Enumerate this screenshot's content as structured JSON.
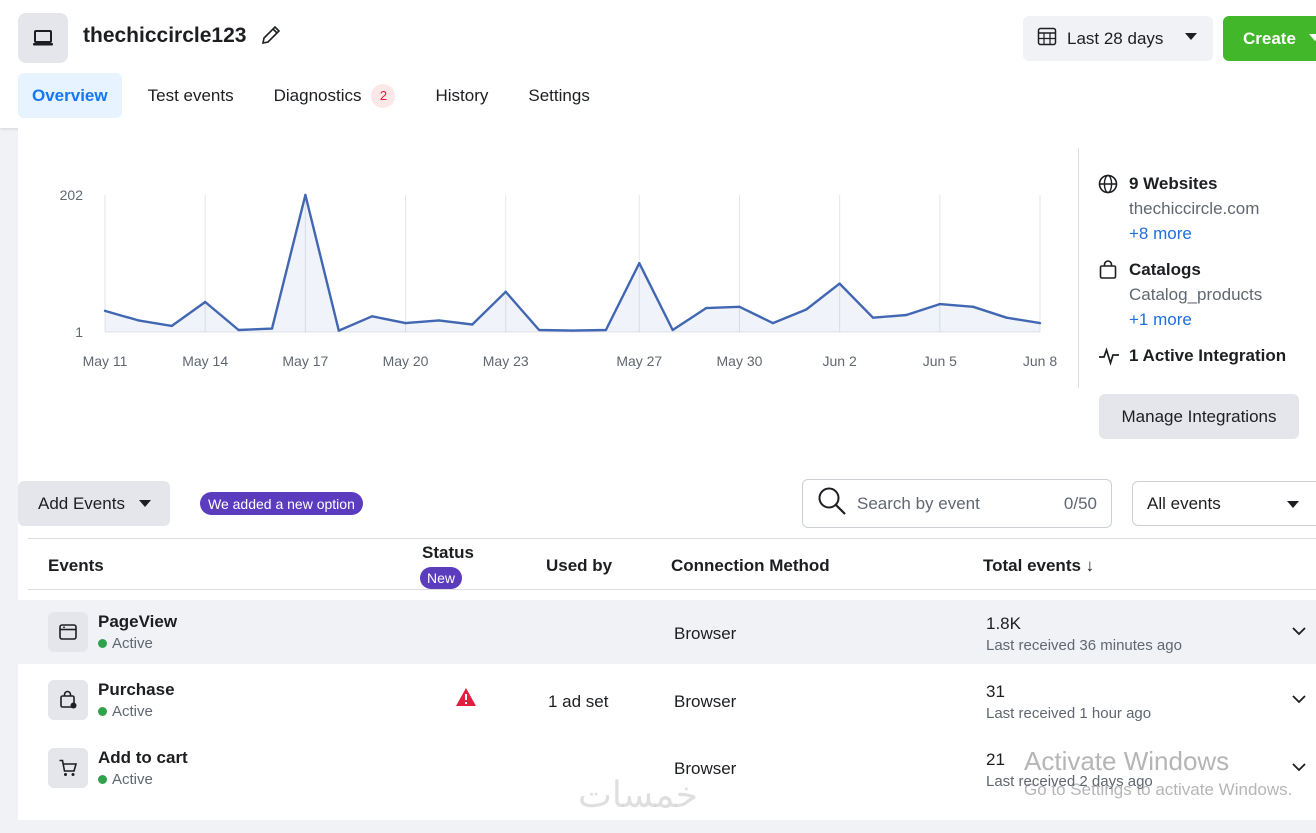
{
  "header": {
    "pixel_name": "thechiccircle123",
    "date_range": "Last 28 days",
    "create_label": "Create"
  },
  "tabs": [
    {
      "label": "Overview",
      "active": true
    },
    {
      "label": "Test events"
    },
    {
      "label": "Diagnostics",
      "badge": "2"
    },
    {
      "label": "History"
    },
    {
      "label": "Settings"
    }
  ],
  "chart_data": {
    "type": "line",
    "title": "",
    "xlabel": "",
    "ylabel": "",
    "y_ticks": [
      "202",
      "1"
    ],
    "ylim": [
      1,
      202
    ],
    "x_ticks": [
      "May 11",
      "May 14",
      "May 17",
      "May 20",
      "May 23",
      "May 27",
      "May 30",
      "Jun 2",
      "Jun 5",
      "Jun 8"
    ],
    "grid": "vertical",
    "color": "#4267b2",
    "series": [
      {
        "x": [
          "May 11",
          "May 12",
          "May 13",
          "May 14",
          "May 15",
          "May 16",
          "May 17",
          "May 18",
          "May 19",
          "May 20",
          "May 21",
          "May 22",
          "May 23",
          "May 24",
          "May 25",
          "May 26",
          "May 27",
          "May 28",
          "May 29",
          "May 30",
          "May 31",
          "Jun 1",
          "Jun 2",
          "Jun 3",
          "Jun 4",
          "Jun 5",
          "Jun 6",
          "Jun 7",
          "Jun 8"
        ],
        "values": [
          32,
          18,
          10,
          45,
          4,
          6,
          202,
          3,
          24,
          14,
          18,
          12,
          60,
          4,
          3,
          4,
          102,
          4,
          36,
          38,
          14,
          34,
          72,
          22,
          26,
          42,
          38,
          22,
          14
        ]
      }
    ]
  },
  "side": {
    "websites_title": "9 Websites",
    "website": "thechiccircle.com",
    "websites_more": "+8 more",
    "catalogs_title": "Catalogs",
    "catalog": "Catalog_products",
    "catalogs_more": "+1 more",
    "integration": "1 Active Integration",
    "manage_label": "Manage Integrations"
  },
  "toolbar": {
    "add_events": "Add Events",
    "new_option": "We added a new option",
    "search_placeholder": "Search by event",
    "search_count": "0/50",
    "filter": "All events"
  },
  "table": {
    "headers": {
      "events": "Events",
      "status": "Status",
      "status_badge": "New",
      "used_by": "Used by",
      "connection": "Connection Method",
      "total": "Total events ↓"
    },
    "rows": [
      {
        "name": "PageView",
        "status": "Active",
        "used_by": "",
        "connection": "Browser",
        "total": "1.8K",
        "last": "Last received 36 minutes ago",
        "icon": "browser-window-icon"
      },
      {
        "name": "Purchase",
        "status": "Active",
        "used_by": "1 ad set",
        "connection": "Browser",
        "total": "31",
        "last": "Last received 1 hour ago",
        "icon": "shopping-bag-icon",
        "warning": true
      },
      {
        "name": "Add to cart",
        "status": "Active",
        "used_by": "",
        "connection": "Browser",
        "total": "21",
        "last": "Last received 2 days ago",
        "icon": "cart-icon"
      }
    ]
  },
  "overlay": {
    "watermark_title": "Activate Windows",
    "watermark_sub": "Go to Settings to activate Windows.",
    "logo": "خمسات"
  }
}
